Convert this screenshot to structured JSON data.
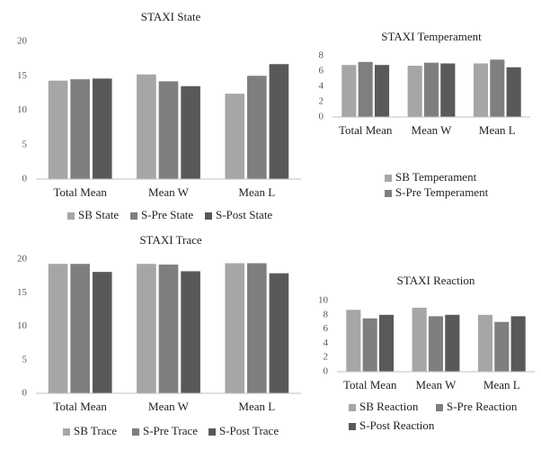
{
  "chart_data": [
    {
      "type": "bar",
      "title": "STAXI State",
      "categories": [
        "Total Mean",
        "Mean W",
        "Mean L"
      ],
      "series": [
        {
          "name": "SB State",
          "color": "#a6a6a6",
          "values": [
            14.3,
            15.2,
            12.4
          ]
        },
        {
          "name": "S-Pre State",
          "color": "#7f7f7f",
          "values": [
            14.5,
            14.2,
            15.0
          ]
        },
        {
          "name": "S-Post State",
          "color": "#595959",
          "values": [
            14.6,
            13.5,
            16.7
          ]
        }
      ],
      "ylim": [
        0,
        20
      ],
      "yticks": [
        0,
        5,
        10,
        15,
        20
      ],
      "grid": false
    },
    {
      "type": "bar",
      "title": "STAXI Temperament",
      "categories": [
        "Total Mean",
        "Mean W",
        "Mean L"
      ],
      "series": [
        {
          "name": "SB Temperament",
          "color": "#a6a6a6",
          "values": [
            6.8,
            6.7,
            7.0
          ]
        },
        {
          "name": "S-Pre Temperament",
          "color": "#7f7f7f",
          "values": [
            7.2,
            7.1,
            7.5
          ]
        },
        {
          "color": "#595959",
          "values": [
            6.8,
            7.0,
            6.5
          ]
        }
      ],
      "ylim": [
        0,
        8
      ],
      "yticks": [
        0,
        2,
        4,
        6,
        8
      ],
      "grid": false
    },
    {
      "type": "bar",
      "title": "STAXI Trace",
      "categories": [
        "Total Mean",
        "Mean W",
        "Mean L"
      ],
      "series": [
        {
          "name": "SB Trace",
          "color": "#a6a6a6",
          "values": [
            19.3,
            19.3,
            19.4
          ]
        },
        {
          "name": "S-Pre Trace",
          "color": "#7f7f7f",
          "values": [
            19.3,
            19.2,
            19.4
          ]
        },
        {
          "name": "S-Post Trace",
          "color": "#595959",
          "values": [
            18.1,
            18.2,
            17.9
          ]
        }
      ],
      "ylim": [
        0,
        20
      ],
      "yticks": [
        0,
        5,
        10,
        15,
        20
      ],
      "grid": false
    },
    {
      "type": "bar",
      "title": "STAXI Reaction",
      "categories": [
        "Total Mean",
        "Mean W",
        "Mean L"
      ],
      "series": [
        {
          "name": "SB Reaction",
          "color": "#a6a6a6",
          "values": [
            8.7,
            9.0,
            8.0
          ]
        },
        {
          "name": "S-Pre Reaction",
          "color": "#7f7f7f",
          "values": [
            7.5,
            7.8,
            7.0
          ]
        },
        {
          "name": "S-Post Reaction",
          "color": "#595959",
          "values": [
            8.0,
            8.0,
            7.8
          ]
        }
      ],
      "ylim": [
        0,
        10
      ],
      "yticks": [
        0,
        2,
        4,
        6,
        8,
        10
      ],
      "grid": false
    }
  ]
}
